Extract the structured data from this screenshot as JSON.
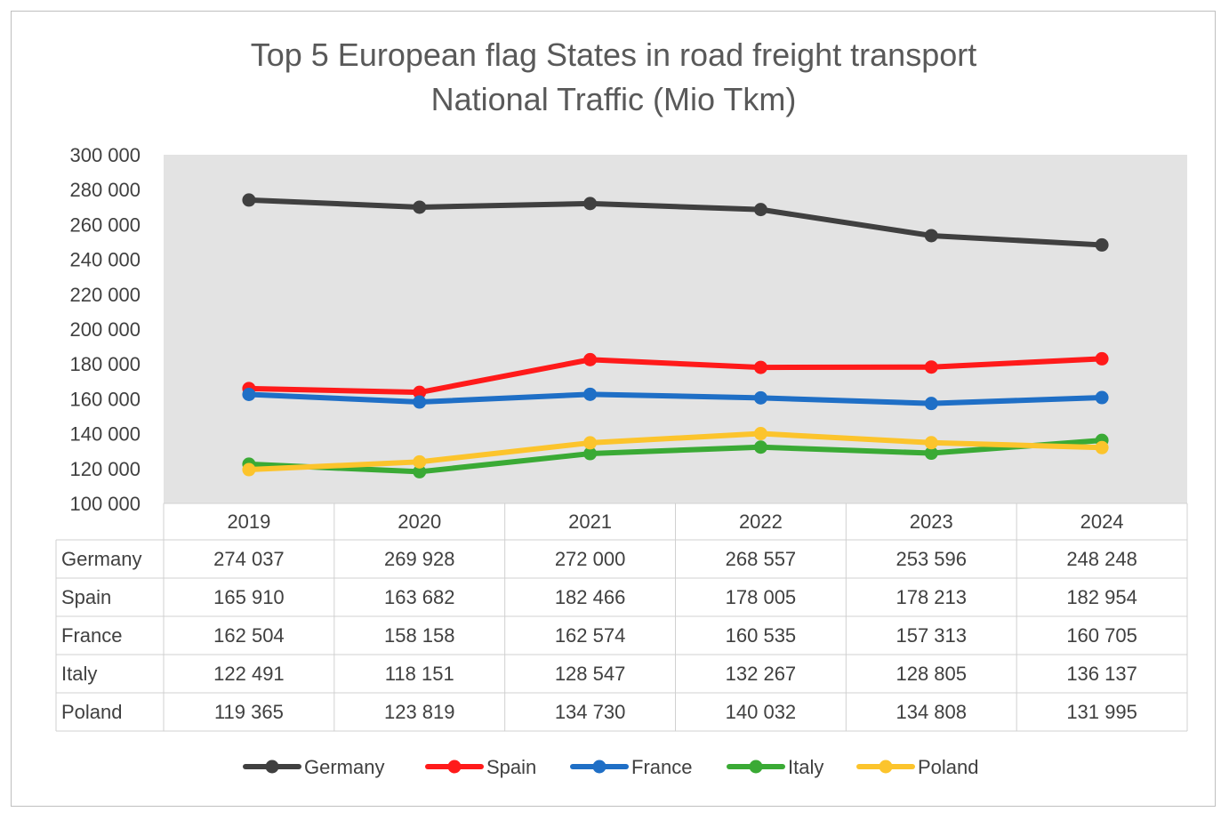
{
  "chart_data": {
    "type": "line",
    "title": [
      "Top 5 European flag States in road freight transport",
      "National Traffic (Mio Tkm)"
    ],
    "xlabel": "",
    "ylabel": "",
    "categories": [
      "2019",
      "2020",
      "2021",
      "2022",
      "2023",
      "2024"
    ],
    "ylim": [
      100000,
      300000
    ],
    "ytick_step": 20000,
    "ytick_labels": [
      "100 000",
      "120 000",
      "140 000",
      "160 000",
      "180 000",
      "200 000",
      "220 000",
      "240 000",
      "260 000",
      "280 000",
      "300 000"
    ],
    "plot_background": "#e3e3e3",
    "gridlines": false,
    "legend": "bottom",
    "series": [
      {
        "name": "Germany",
        "color": "#404040",
        "values": [
          274037,
          269928,
          272000,
          268557,
          253596,
          248248
        ],
        "labels": [
          "274 037",
          "269 928",
          "272 000",
          "268 557",
          "253 596",
          "248 248"
        ]
      },
      {
        "name": "Spain",
        "color": "#ff1a1a",
        "values": [
          165910,
          163682,
          182466,
          178005,
          178213,
          182954
        ],
        "labels": [
          "165 910",
          "163 682",
          "182 466",
          "178 005",
          "178 213",
          "182 954"
        ]
      },
      {
        "name": "France",
        "color": "#1f6fc6",
        "values": [
          162504,
          158158,
          162574,
          160535,
          157313,
          160705
        ],
        "labels": [
          "162 504",
          "158 158",
          "162 574",
          "160 535",
          "157 313",
          "160 705"
        ]
      },
      {
        "name": "Italy",
        "color": "#3aaa35",
        "values": [
          122491,
          118151,
          128547,
          132267,
          128805,
          136137
        ],
        "labels": [
          "122 491",
          "118 151",
          "128 547",
          "132 267",
          "128 805",
          "136 137"
        ]
      },
      {
        "name": "Poland",
        "color": "#fcc42c",
        "values": [
          119365,
          123819,
          134730,
          140032,
          134808,
          131995
        ],
        "labels": [
          "119 365",
          "123 819",
          "134 730",
          "140 032",
          "134 808",
          "131 995"
        ]
      }
    ]
  }
}
